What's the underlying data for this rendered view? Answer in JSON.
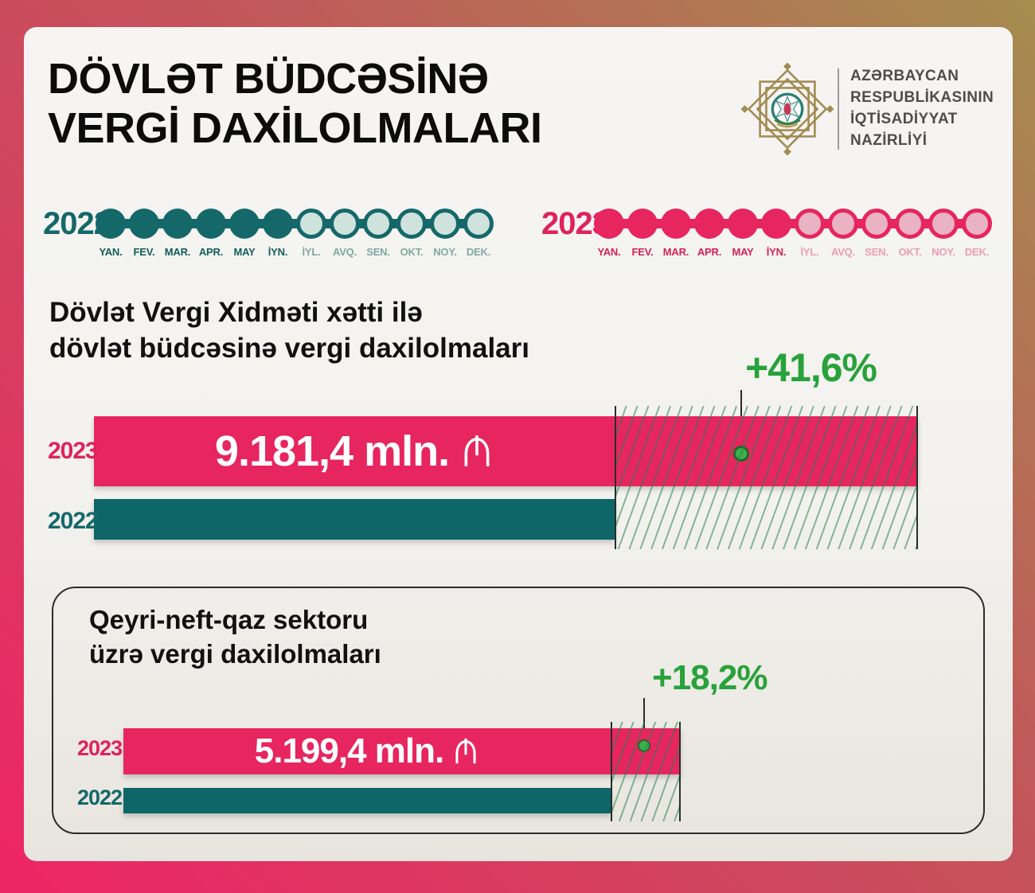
{
  "header": {
    "title_line1": "DÖVLƏT BÜDCƏSİNƏ",
    "title_line2": "VERGİ DAXİLOLMALARI",
    "ministry_line1": "AZƏRBAYCAN",
    "ministry_line2": "RESPUBLİKASININ",
    "ministry_line3": "İQTİSADİYYAT",
    "ministry_line4": "NAZİRLİYİ"
  },
  "months": [
    "YAN.",
    "FEV.",
    "MAR.",
    "APR.",
    "MAY",
    "İYN.",
    "İYL.",
    "AVQ.",
    "SEN.",
    "OKT.",
    "NOY.",
    "DEK."
  ],
  "timeline": {
    "year_left": "2022",
    "year_right": "2023",
    "months_active": 6
  },
  "section1": {
    "heading_line1": "Dövlət Vergi Xidməti xətti ilə",
    "heading_line2": "dövlət büdcəsinə vergi daxilolmaları",
    "growth": "+41,6%",
    "bar_2023": {
      "year": "2023",
      "value": "9.181,4 mln."
    },
    "bar_2022": {
      "year": "2022"
    }
  },
  "section2": {
    "heading_line1": "Qeyri-neft-qaz sektoru",
    "heading_line2": "üzrə vergi daxilolmaları",
    "growth": "+18,2%",
    "bar_2023": {
      "year": "2023",
      "value": "5.199,4 mln."
    },
    "bar_2022": {
      "year": "2022"
    }
  },
  "colors": {
    "pink": "#e7255f",
    "teal": "#0e6668",
    "green": "#28a23b",
    "gold": "#a58d4f",
    "card_bg": "#f4f3f0"
  },
  "chart_data": [
    {
      "type": "bar",
      "title": "Dövlət Vergi Xidməti xətti ilə dövlət büdcəsinə vergi daxilolmaları",
      "unit": "mln. AZN",
      "categories": [
        "2023",
        "2022"
      ],
      "values": [
        9181.4,
        6484.0
      ],
      "value_labels": [
        "9.181,4 mln. ₼",
        ""
      ],
      "growth_label": "+41,6%",
      "growth_pct": 41.6,
      "note": "2022 bar unlabeled; value estimated from +41,6% growth vs 2022",
      "legend_position": "left",
      "grid": false
    },
    {
      "type": "bar",
      "title": "Qeyri-neft-qaz sektoru üzrə vergi daxilolmaları",
      "unit": "mln. AZN",
      "categories": [
        "2023",
        "2022"
      ],
      "values": [
        5199.4,
        4398.8
      ],
      "value_labels": [
        "5.199,4 mln. ₼",
        ""
      ],
      "growth_label": "+18,2%",
      "growth_pct": 18.2,
      "note": "2022 bar unlabeled; value estimated from +18,2% growth vs 2022",
      "legend_position": "left",
      "grid": false
    }
  ]
}
